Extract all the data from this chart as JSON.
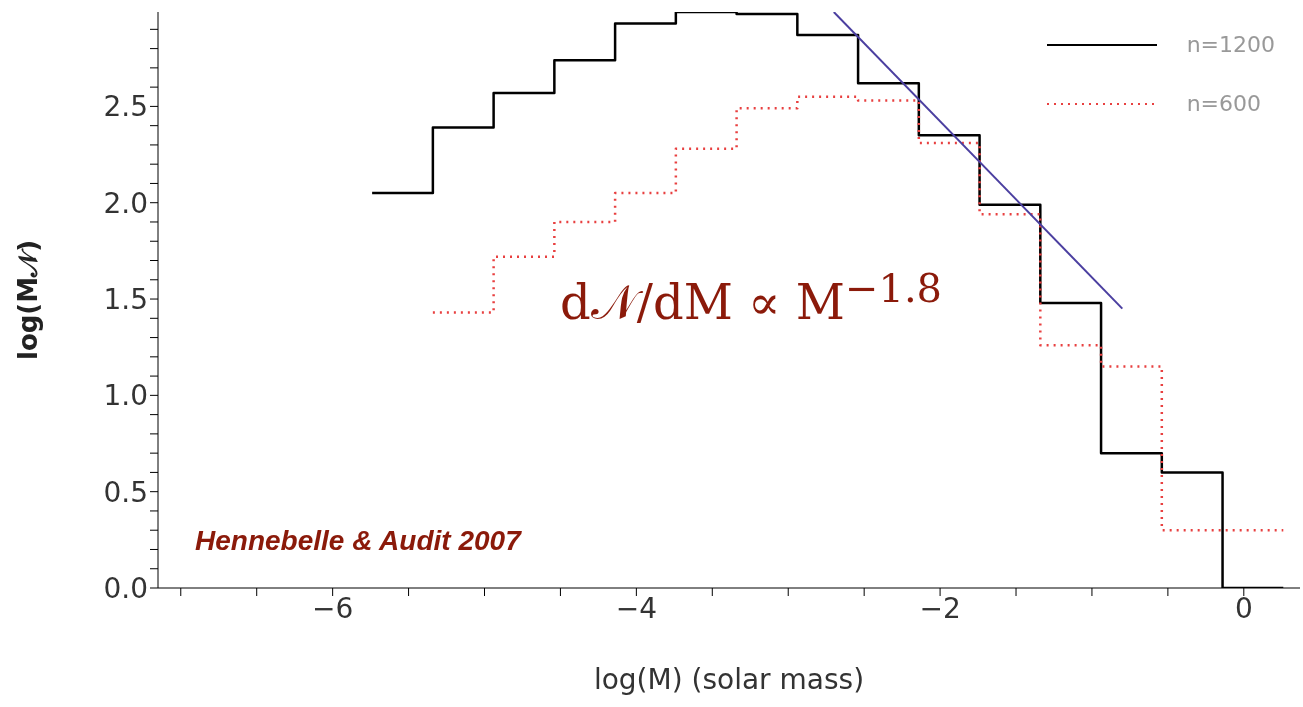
{
  "chart_data": {
    "type": "step",
    "xlabel": "log(M) (solar mass)",
    "ylabel": "log(M𝒩)",
    "xlim": [
      -7.15,
      0.37
    ],
    "xticks": [
      {
        "value": -7,
        "label": null
      },
      {
        "value": -6.5,
        "label": null
      },
      {
        "value": -6,
        "label": "−6"
      },
      {
        "value": -5.5,
        "label": null
      },
      {
        "value": -5,
        "label": null
      },
      {
        "value": -4.5,
        "label": null
      },
      {
        "value": -4,
        "label": "−4"
      },
      {
        "value": -3.5,
        "label": null
      },
      {
        "value": -3,
        "label": null
      },
      {
        "value": -2.5,
        "label": null
      },
      {
        "value": -2,
        "label": "−2"
      },
      {
        "value": -1.5,
        "label": null
      },
      {
        "value": -1,
        "label": null
      },
      {
        "value": -0.5,
        "label": null
      },
      {
        "value": 0,
        "label": "0"
      }
    ],
    "ylim": [
      0,
      2.99
    ],
    "yticks": [
      {
        "value": 0,
        "label": "0.0"
      },
      {
        "value": 0.1,
        "label": null
      },
      {
        "value": 0.2,
        "label": null
      },
      {
        "value": 0.3,
        "label": null
      },
      {
        "value": 0.4,
        "label": null
      },
      {
        "value": 0.5,
        "label": "0.5"
      },
      {
        "value": 0.6,
        "label": null
      },
      {
        "value": 0.7,
        "label": null
      },
      {
        "value": 0.8,
        "label": null
      },
      {
        "value": 0.9,
        "label": null
      },
      {
        "value": 1,
        "label": "1.0"
      },
      {
        "value": 1.1,
        "label": null
      },
      {
        "value": 1.2,
        "label": null
      },
      {
        "value": 1.3,
        "label": null
      },
      {
        "value": 1.4,
        "label": null
      },
      {
        "value": 1.5,
        "label": "1.5"
      },
      {
        "value": 1.6,
        "label": null
      },
      {
        "value": 1.7,
        "label": null
      },
      {
        "value": 1.8,
        "label": null
      },
      {
        "value": 1.9,
        "label": null
      },
      {
        "value": 2,
        "label": "2.0"
      },
      {
        "value": 2.1,
        "label": null
      },
      {
        "value": 2.2,
        "label": null
      },
      {
        "value": 2.3,
        "label": null
      },
      {
        "value": 2.4,
        "label": null
      },
      {
        "value": 2.5,
        "label": "2.5"
      },
      {
        "value": 2.6,
        "label": null
      },
      {
        "value": 2.7,
        "label": null
      },
      {
        "value": 2.8,
        "label": null
      },
      {
        "value": 2.9,
        "label": null
      }
    ],
    "legend": "top right",
    "marker": "none",
    "series": [
      {
        "name": "n=1200",
        "color": "#000000",
        "line_style": "solid",
        "x": [
          -5.74,
          -5.34,
          -4.94,
          -4.54,
          -4.14,
          -3.74,
          -3.34,
          -2.94,
          -2.54,
          -2.14,
          -1.74,
          -1.34,
          -0.94,
          -0.54,
          -0.14,
          0.26
        ],
        "values": [
          2.05,
          2.39,
          2.57,
          2.74,
          2.93,
          2.99,
          2.98,
          2.87,
          2.62,
          2.35,
          1.99,
          1.48,
          0.7,
          0.6,
          0.0,
          0.0
        ]
      },
      {
        "name": "n=600",
        "color": "#e84040",
        "line_style": "dotted",
        "x": [
          -5.34,
          -4.94,
          -4.54,
          -4.14,
          -3.74,
          -3.34,
          -2.94,
          -2.54,
          -2.14,
          -1.74,
          -1.34,
          -0.94,
          -0.54,
          -0.14,
          0.26
        ],
        "values": [
          1.43,
          1.72,
          1.9,
          2.05,
          2.28,
          2.49,
          2.55,
          2.53,
          2.31,
          1.94,
          1.26,
          1.15,
          0.3,
          0.3,
          0.3
        ]
      },
      {
        "type": "line",
        "color": "#4b3fa0",
        "line_style": "solid",
        "x": [
          -2.7,
          -0.8
        ],
        "values": [
          2.99,
          1.45
        ]
      }
    ],
    "annotations": [
      "d𝒩/dM ∝ M$^{−1.8}$",
      "Hennebelle & Audit 2007"
    ]
  }
}
